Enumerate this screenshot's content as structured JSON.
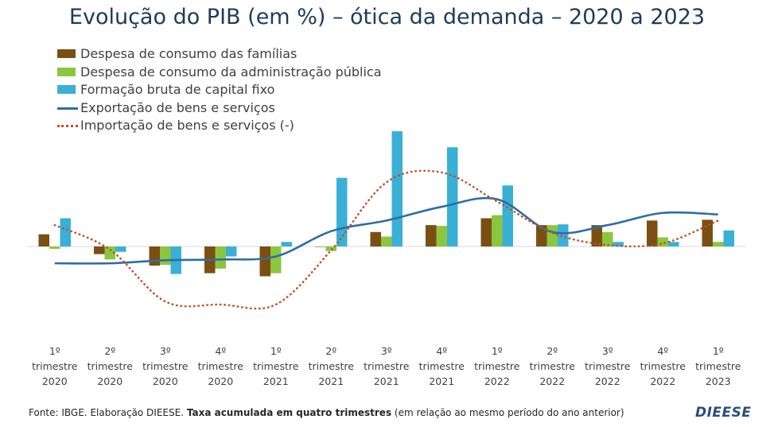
{
  "title": "Evolução do PIB (em %) – ótica da demanda – 2020 a 2023",
  "footer": {
    "source": "Fonte: IBGE. Elaboração DIEESE. ",
    "bold": "Taxa acumulada em quatro trimestres",
    "rest": " (em relação ao mesmo período do ano anterior)"
  },
  "logo": "DIEESE",
  "colors": {
    "familias": "#7b4f12",
    "administracao": "#8cc63f",
    "capital": "#3ab0d6",
    "exportacao": "#2e6da4",
    "importacao": "#c0502a"
  },
  "chart_data": {
    "type": "bar",
    "categories": [
      [
        "1º",
        "trimestre",
        "2020"
      ],
      [
        "2º",
        "trimestre",
        "2020"
      ],
      [
        "3º",
        "trimestre",
        "2020"
      ],
      [
        "4º",
        "trimestre",
        "2020"
      ],
      [
        "1º",
        "trimestre",
        "2021"
      ],
      [
        "2º",
        "trimestre",
        "2021"
      ],
      [
        "3º",
        "trimestre",
        "2021"
      ],
      [
        "4º",
        "trimestre",
        "2021"
      ],
      [
        "1º",
        "trimestre",
        "2022"
      ],
      [
        "2º",
        "trimestre",
        "2022"
      ],
      [
        "3º",
        "trimestre",
        "2022"
      ],
      [
        "4º",
        "trimestre",
        "2022"
      ],
      [
        "1º",
        "trimestre",
        "2023"
      ]
    ],
    "series": [
      {
        "name": "Despesa de consumo das famílias",
        "kind": "bar",
        "color": "#7b4f12",
        "values": [
          1.6,
          -1.0,
          -2.5,
          -3.5,
          -3.9,
          0.0,
          1.9,
          2.8,
          3.7,
          2.8,
          2.8,
          3.4,
          3.5
        ]
      },
      {
        "name": "Despesa de consumo da administração pública",
        "kind": "bar",
        "color": "#8cc63f",
        "values": [
          -0.3,
          -1.7,
          -2.4,
          -2.9,
          -3.5,
          -0.6,
          1.3,
          2.7,
          4.1,
          2.8,
          1.9,
          1.2,
          0.6
        ]
      },
      {
        "name": "Formação bruta de capital fixo",
        "kind": "bar",
        "color": "#3ab0d6",
        "values": [
          3.7,
          -0.7,
          -3.6,
          -1.3,
          0.6,
          9.0,
          15.1,
          13.0,
          8.0,
          2.9,
          0.6,
          0.6,
          2.1
        ]
      },
      {
        "name": "Exportação de bens e serviços",
        "kind": "line",
        "color": "#2e6da4",
        "values": [
          -2.2,
          -2.2,
          -1.8,
          -1.7,
          -1.3,
          2.0,
          3.4,
          5.2,
          6.2,
          1.9,
          2.8,
          4.4,
          4.2
        ]
      },
      {
        "name": "Importação de bens e serviços (-)",
        "kind": "dotted-line",
        "color": "#c0502a",
        "values": [
          2.8,
          -0.4,
          -7.2,
          -7.6,
          -7.6,
          -0.5,
          8.4,
          9.7,
          5.9,
          1.8,
          0.2,
          0.4,
          3.4
        ]
      }
    ],
    "ylim": [
      -12,
      17
    ],
    "grid": false,
    "legend_position": "top-left"
  }
}
